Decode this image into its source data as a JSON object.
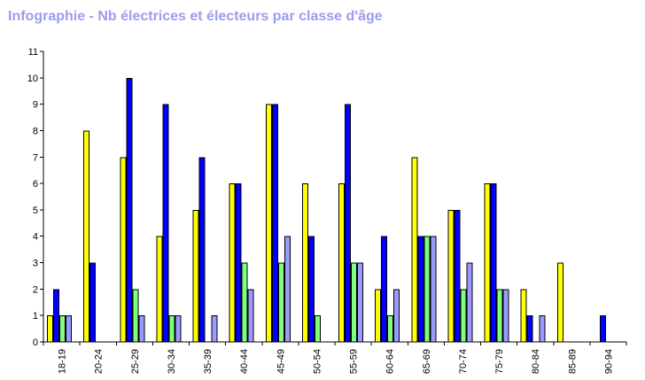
{
  "chart_data": {
    "type": "bar",
    "title": "Infographie - Nb électrices et électeurs par classe d'âge",
    "xlabel": "",
    "ylabel": "",
    "ylim": [
      0,
      11
    ],
    "yticks": [
      0,
      1,
      2,
      3,
      4,
      5,
      6,
      7,
      8,
      9,
      10,
      11
    ],
    "grid": false,
    "legend": "none",
    "categories": [
      "18-19",
      "20-24",
      "25-29",
      "30-34",
      "35-39",
      "40-44",
      "45-49",
      "50-54",
      "55-59",
      "60-64",
      "65-69",
      "70-74",
      "75-79",
      "80-84",
      "85-89",
      "90-94"
    ],
    "series": [
      {
        "color": "#ffff00",
        "values": [
          1,
          8,
          7,
          4,
          5,
          6,
          9,
          6,
          6,
          2,
          7,
          5,
          6,
          2,
          3,
          0
        ]
      },
      {
        "color": "#0000ff",
        "values": [
          2,
          3,
          10,
          9,
          7,
          6,
          9,
          4,
          9,
          4,
          4,
          5,
          6,
          1,
          0,
          1
        ]
      },
      {
        "color": "#7fff7f",
        "values": [
          1,
          0,
          2,
          1,
          0,
          3,
          3,
          1,
          3,
          1,
          4,
          2,
          2,
          0,
          0,
          0
        ]
      },
      {
        "color": "#9a9aff",
        "values": [
          1,
          0,
          1,
          1,
          1,
          2,
          4,
          0,
          3,
          2,
          4,
          3,
          2,
          1,
          0,
          0
        ]
      }
    ]
  }
}
